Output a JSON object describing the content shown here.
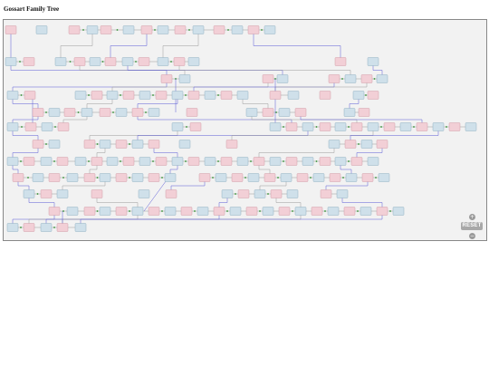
{
  "page": {
    "title": "Gossart Family Tree"
  },
  "colors": {
    "male": "#cfe0ea",
    "male_border": "#7fa3b8",
    "female": "#f2cfd6",
    "female_border": "#c98d99",
    "unknown": "#e2e2e2",
    "link_blue": "#5b5bd6",
    "link_grey": "#9a9a9a",
    "marriage_dot": "#2f8f2f",
    "viewport_bg": "#f2f2f2"
  },
  "controls": {
    "zoom_in_icon": "+",
    "reset_label": "RESET",
    "zoom_out_icon": "−"
  }
}
